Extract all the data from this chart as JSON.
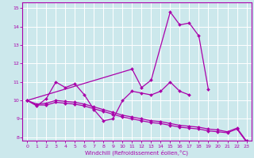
{
  "bg_color": "#cce8ec",
  "line_color": "#aa00aa",
  "grid_color": "#ffffff",
  "xlim": [
    -0.5,
    23.5
  ],
  "ylim": [
    7.8,
    15.3
  ],
  "xticks": [
    0,
    1,
    2,
    3,
    4,
    5,
    6,
    7,
    8,
    9,
    10,
    11,
    12,
    13,
    14,
    15,
    16,
    17,
    18,
    19,
    20,
    21,
    22,
    23
  ],
  "yticks": [
    8,
    9,
    10,
    11,
    12,
    13,
    14,
    15
  ],
  "xlabel": "Windchill (Refroidissement éolien,°C)",
  "series": [
    {
      "x": [
        0,
        1,
        2,
        3,
        4,
        5,
        6,
        7,
        8,
        9,
        10,
        11,
        12,
        13,
        14,
        15,
        16,
        17
      ],
      "y": [
        10.0,
        9.7,
        10.1,
        11.0,
        10.7,
        10.9,
        10.3,
        9.5,
        8.9,
        9.0,
        10.0,
        10.5,
        10.4,
        10.3,
        10.5,
        11.0,
        10.5,
        10.3
      ]
    },
    {
      "x": [
        0,
        11,
        12,
        13,
        15,
        16,
        17,
        18,
        19
      ],
      "y": [
        10.0,
        11.7,
        10.7,
        11.1,
        14.8,
        14.1,
        14.2,
        13.5,
        10.6
      ]
    },
    {
      "x": [
        0,
        1,
        2,
        3,
        4,
        5,
        6,
        7,
        8,
        9,
        10,
        11,
        12,
        13,
        14,
        15,
        16,
        17,
        18,
        19,
        20,
        21,
        22,
        23
      ],
      "y": [
        10.0,
        9.75,
        9.75,
        9.9,
        9.85,
        9.8,
        9.7,
        9.55,
        9.4,
        9.25,
        9.1,
        9.0,
        8.9,
        8.8,
        8.75,
        8.65,
        8.55,
        8.5,
        8.45,
        8.35,
        8.3,
        8.25,
        8.45,
        7.75
      ]
    },
    {
      "x": [
        0,
        1,
        2,
        3,
        4,
        5,
        6,
        7,
        8,
        9,
        10,
        11,
        12,
        13,
        14,
        15,
        16,
        17,
        18,
        19,
        20,
        21,
        22,
        23
      ],
      "y": [
        10.0,
        9.8,
        9.85,
        10.0,
        9.95,
        9.9,
        9.8,
        9.65,
        9.5,
        9.35,
        9.2,
        9.1,
        9.0,
        8.9,
        8.85,
        8.75,
        8.65,
        8.6,
        8.55,
        8.45,
        8.4,
        8.3,
        8.5,
        7.8
      ]
    }
  ]
}
